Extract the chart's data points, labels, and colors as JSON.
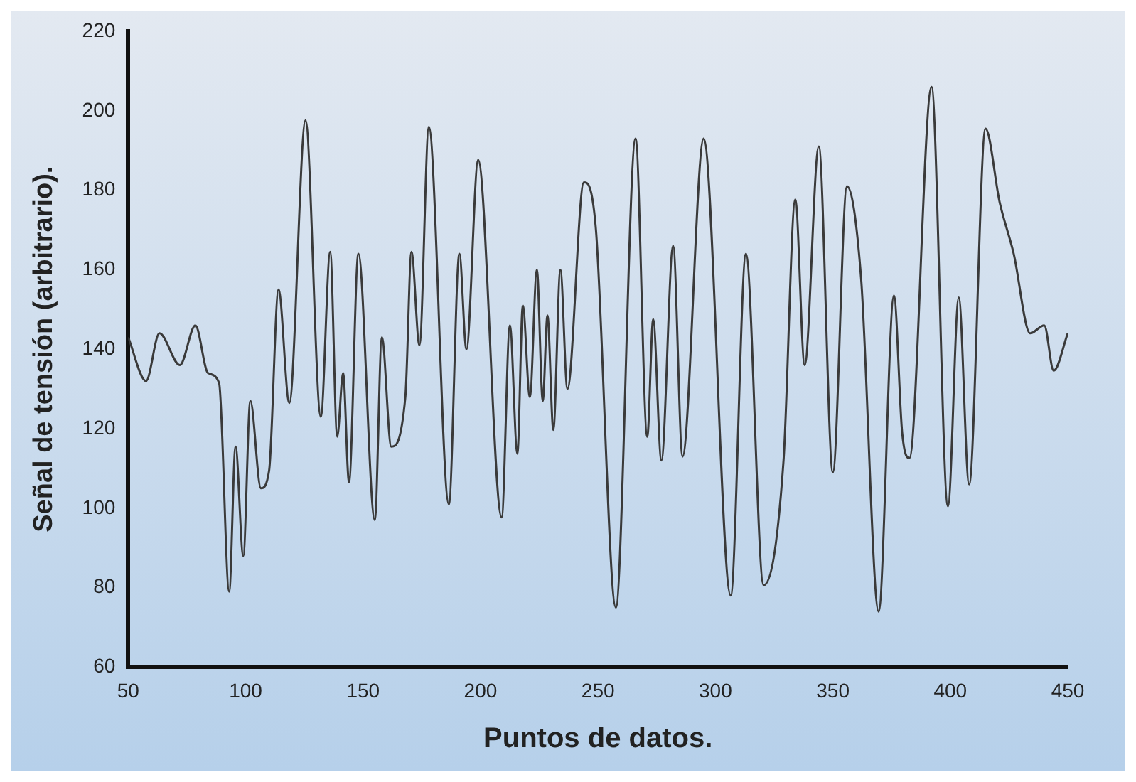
{
  "chart_data": {
    "type": "line",
    "xlabel": "Puntos de datos.",
    "ylabel": "Señal de tensión (arbitrario).",
    "xlim": [
      50,
      450
    ],
    "xticks": [
      50,
      100,
      150,
      200,
      250,
      300,
      350,
      400,
      450
    ],
    "ylim": [
      60,
      220
    ],
    "yticks": [
      60,
      80,
      100,
      120,
      140,
      160,
      180,
      200,
      220
    ],
    "grid": false,
    "legend": false,
    "marker": "none",
    "line_style": "solid",
    "series": [
      {
        "color": "#3a3a3a",
        "x": [
          50,
          57.6,
          63.3,
          72,
          78.6,
          84,
          88.7,
          93,
          95.7,
          99,
          102,
          106.5,
          110,
          114,
          118.6,
          125.5,
          132,
          136,
          139,
          141.5,
          144,
          148,
          155,
          158,
          162,
          168,
          170.6,
          174,
          178,
          186.5,
          191,
          194,
          199,
          209,
          212.5,
          215.7,
          218,
          221,
          224,
          226.5,
          228.5,
          231,
          234,
          237,
          244,
          249,
          257.6,
          266,
          271,
          273.5,
          277,
          282,
          286,
          295,
          306.5,
          313,
          320.5,
          329,
          334,
          338,
          344,
          350,
          356,
          362,
          369.5,
          376,
          379.5,
          382.6,
          392,
          399,
          403.6,
          408,
          415,
          421,
          427,
          434,
          440,
          444,
          450
        ],
        "values": [
          143,
          132,
          144,
          136,
          146,
          134,
          131.5,
          79,
          115.5,
          88,
          127,
          105,
          109.5,
          155,
          126.5,
          197.6,
          123,
          164.5,
          118,
          134,
          106.6,
          164,
          97,
          143,
          115.5,
          128,
          164.5,
          141,
          196,
          101,
          164,
          140,
          187.6,
          97.7,
          146,
          113.7,
          151,
          128,
          160,
          127,
          148.5,
          119.7,
          160,
          130,
          182,
          171,
          75,
          193,
          118,
          147.5,
          112,
          166,
          113,
          193,
          78,
          164,
          80.6,
          112,
          177.7,
          136,
          191,
          109,
          181,
          158,
          74,
          153.5,
          119,
          112.6,
          206,
          100.5,
          153,
          106,
          195.5,
          177,
          164,
          144,
          146,
          134.6,
          144
        ]
      }
    ]
  }
}
